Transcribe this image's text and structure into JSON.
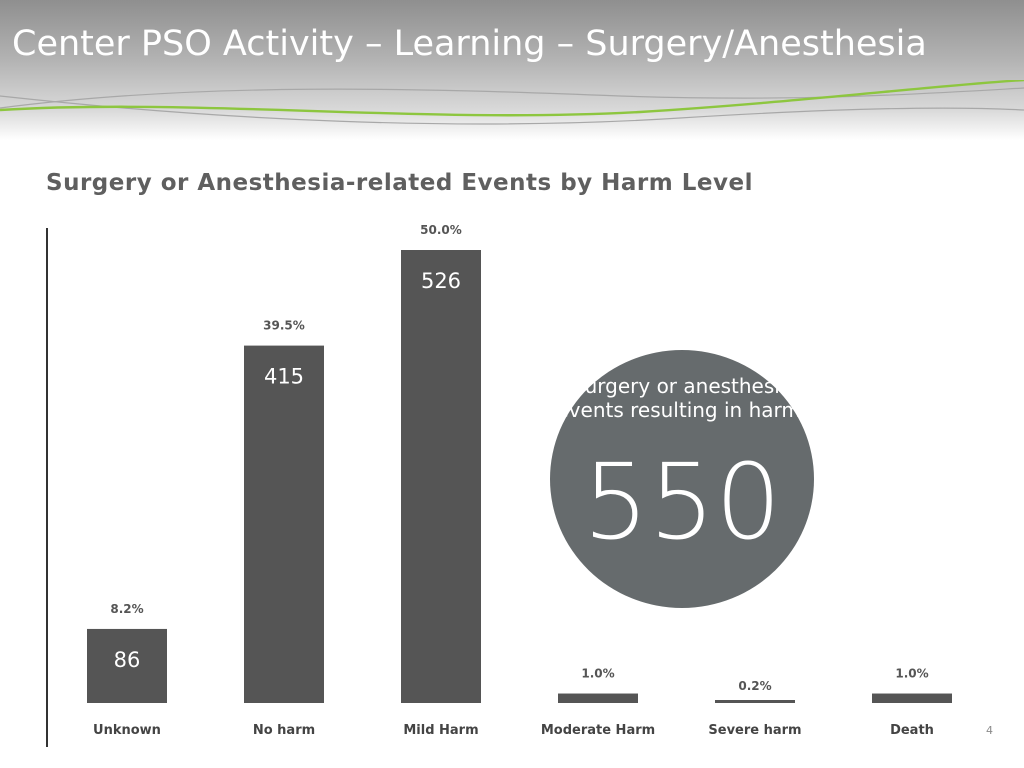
{
  "slide": {
    "title": "Center PSO Activity – Learning – Surgery/Anesthesia",
    "page_number": "4"
  },
  "callout": {
    "label": "Surgery or anesthesia events resulting in harm:",
    "value": "550",
    "color": "#666b6d"
  },
  "colors": {
    "bar": "#555555",
    "accent_line": "#8dc63f",
    "swoosh_line": "#a8a8a8"
  },
  "chart_data": {
    "type": "bar",
    "title": "Surgery or Anesthesia-related Events by Harm Level",
    "categories": [
      "Unknown",
      "No harm",
      "Mild Harm",
      "Moderate Harm",
      "Severe harm",
      "Death"
    ],
    "values": [
      86,
      415,
      526,
      11,
      2,
      11
    ],
    "value_labels": [
      "86",
      "415",
      "526",
      "",
      "",
      ""
    ],
    "percent_labels": [
      "8.2%",
      "39.5%",
      "50.0%",
      "1.0%",
      "0.2%",
      "1.0%"
    ],
    "xlabel": "",
    "ylabel": "",
    "ylim": [
      0,
      526
    ],
    "grid": false,
    "legend": "none"
  }
}
